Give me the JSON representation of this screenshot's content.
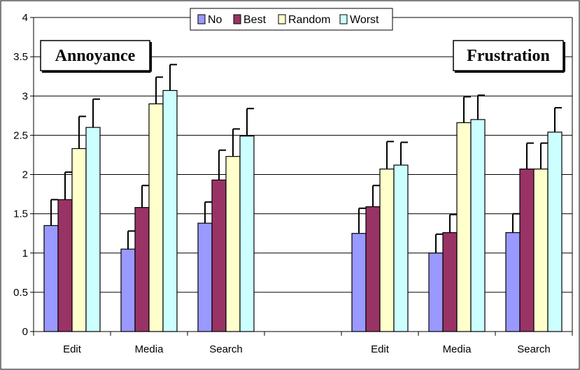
{
  "chart_data": {
    "type": "bar",
    "ylim": [
      0,
      4
    ],
    "yticks": [
      "0",
      "0.5",
      "1",
      "1.5",
      "2",
      "2.5",
      "3",
      "3.5",
      "4"
    ],
    "legend": {
      "placement": "top-center",
      "items": [
        {
          "name": "No",
          "color": "#9999ff"
        },
        {
          "name": "Best",
          "color": "#993366"
        },
        {
          "name": "Random",
          "color": "#ffffcc"
        },
        {
          "name": "Worst",
          "color": "#ccffff"
        }
      ]
    },
    "panels": [
      {
        "label": "Annoyance",
        "categories": [
          "Edit",
          "Media",
          "Search"
        ],
        "series": [
          {
            "name": "No",
            "values": [
              1.35,
              1.05,
              1.38
            ],
            "errors": [
              0.33,
              0.23,
              0.27
            ]
          },
          {
            "name": "Best",
            "values": [
              1.68,
              1.58,
              1.93
            ],
            "errors": [
              0.35,
              0.28,
              0.38
            ]
          },
          {
            "name": "Random",
            "values": [
              2.33,
              2.9,
              2.23
            ],
            "errors": [
              0.41,
              0.34,
              0.35
            ]
          },
          {
            "name": "Worst",
            "values": [
              2.6,
              3.07,
              2.49
            ],
            "errors": [
              0.36,
              0.33,
              0.35
            ]
          }
        ]
      },
      {
        "label": "Frustration",
        "categories": [
          "Edit",
          "Media",
          "Search"
        ],
        "series": [
          {
            "name": "No",
            "values": [
              1.25,
              1.0,
              1.26
            ],
            "errors": [
              0.32,
              0.24,
              0.24
            ]
          },
          {
            "name": "Best",
            "values": [
              1.59,
              1.26,
              2.07
            ],
            "errors": [
              0.27,
              0.23,
              0.33
            ]
          },
          {
            "name": "Random",
            "values": [
              2.07,
              2.66,
              2.07
            ],
            "errors": [
              0.35,
              0.33,
              0.33
            ]
          },
          {
            "name": "Worst",
            "values": [
              2.12,
              2.7,
              2.54
            ],
            "errors": [
              0.29,
              0.31,
              0.31
            ]
          }
        ]
      }
    ],
    "grid": true
  }
}
